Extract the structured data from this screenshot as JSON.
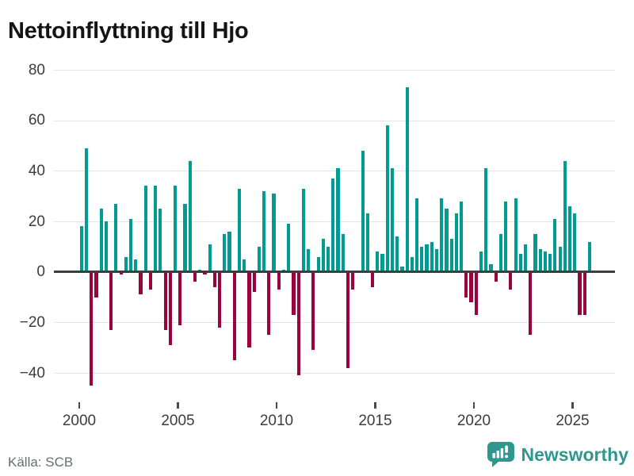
{
  "title": "Nettoinflyttning till Hjo",
  "footer": {
    "source": "Källa: SCB",
    "brand": "Newsworthy"
  },
  "colors": {
    "positive": "#009C94",
    "negative": "#9A033E",
    "zero_axis": "#3d3d3d",
    "gridline": "#e4e4e4",
    "brand_teal": "#2e9790"
  },
  "chart_data": {
    "type": "bar",
    "title": "Nettoinflyttning till Hjo",
    "frequency": "quarterly",
    "categories": [
      "2000 Q1",
      "2000 Q2",
      "2000 Q3",
      "2000 Q4",
      "2001 Q1",
      "2001 Q2",
      "2001 Q3",
      "2001 Q4",
      "2002 Q1",
      "2002 Q2",
      "2002 Q3",
      "2002 Q4",
      "2003 Q1",
      "2003 Q2",
      "2003 Q3",
      "2003 Q4",
      "2004 Q1",
      "2004 Q2",
      "2004 Q3",
      "2004 Q4",
      "2005 Q1",
      "2005 Q2",
      "2005 Q3",
      "2005 Q4",
      "2006 Q1",
      "2006 Q2",
      "2006 Q3",
      "2006 Q4",
      "2007 Q1",
      "2007 Q2",
      "2007 Q3",
      "2007 Q4",
      "2008 Q1",
      "2008 Q2",
      "2008 Q3",
      "2008 Q4",
      "2009 Q1",
      "2009 Q2",
      "2009 Q3",
      "2009 Q4",
      "2010 Q1",
      "2010 Q2",
      "2010 Q3",
      "2010 Q4",
      "2011 Q1",
      "2011 Q2",
      "2011 Q3",
      "2011 Q4",
      "2012 Q1",
      "2012 Q2",
      "2012 Q3",
      "2012 Q4",
      "2013 Q1",
      "2013 Q2",
      "2013 Q3",
      "2013 Q4",
      "2014 Q1",
      "2014 Q2",
      "2014 Q3",
      "2014 Q4",
      "2015 Q1",
      "2015 Q2",
      "2015 Q3",
      "2015 Q4",
      "2016 Q1",
      "2016 Q2",
      "2016 Q3",
      "2016 Q4",
      "2017 Q1",
      "2017 Q2",
      "2017 Q3",
      "2017 Q4",
      "2018 Q1",
      "2018 Q2",
      "2018 Q3",
      "2018 Q4",
      "2019 Q1",
      "2019 Q2",
      "2019 Q3",
      "2019 Q4",
      "2020 Q1",
      "2020 Q2",
      "2020 Q3",
      "2020 Q4",
      "2021 Q1",
      "2021 Q2",
      "2021 Q3",
      "2021 Q4",
      "2022 Q1",
      "2022 Q2",
      "2022 Q3",
      "2022 Q4",
      "2023 Q1",
      "2023 Q2",
      "2023 Q3",
      "2023 Q4",
      "2024 Q1",
      "2024 Q2",
      "2024 Q3",
      "2024 Q4",
      "2025 Q1",
      "2025 Q2",
      "2025 Q3",
      "2025 Q4"
    ],
    "values": [
      18,
      49,
      -45,
      -10,
      25,
      20,
      -23,
      27,
      -1,
      6,
      21,
      5,
      -9,
      34,
      -7,
      34,
      25,
      -23,
      -29,
      34,
      -21,
      27,
      44,
      -4,
      1,
      -1,
      11,
      -6,
      -22,
      15,
      16,
      -35,
      33,
      5,
      -30,
      -8,
      10,
      32,
      -25,
      31,
      -7,
      1,
      19,
      -17,
      -41,
      33,
      9,
      -31,
      6,
      13,
      10,
      37,
      41,
      15,
      -38,
      -7,
      0,
      48,
      23,
      -6,
      8,
      7,
      58,
      41,
      14,
      2,
      73,
      6,
      29,
      10,
      11,
      12,
      9,
      29,
      25,
      13,
      23,
      28,
      -10,
      -12,
      -17,
      8,
      41,
      3,
      -4,
      15,
      28,
      -7,
      29,
      7,
      11,
      -25,
      15,
      9,
      8,
      7,
      21,
      10,
      44,
      26,
      23,
      -17,
      -17,
      12
    ],
    "positive_color": "#009C94",
    "negative_color": "#9A033E",
    "y_ticks": [
      80,
      60,
      40,
      20,
      0,
      -20,
      -40
    ],
    "x_tick_labels": [
      "2000",
      "2005",
      "2010",
      "2015",
      "2020",
      "2025"
    ],
    "ylim": [
      -50,
      85
    ],
    "grid": "horizontal",
    "legend": "none"
  }
}
